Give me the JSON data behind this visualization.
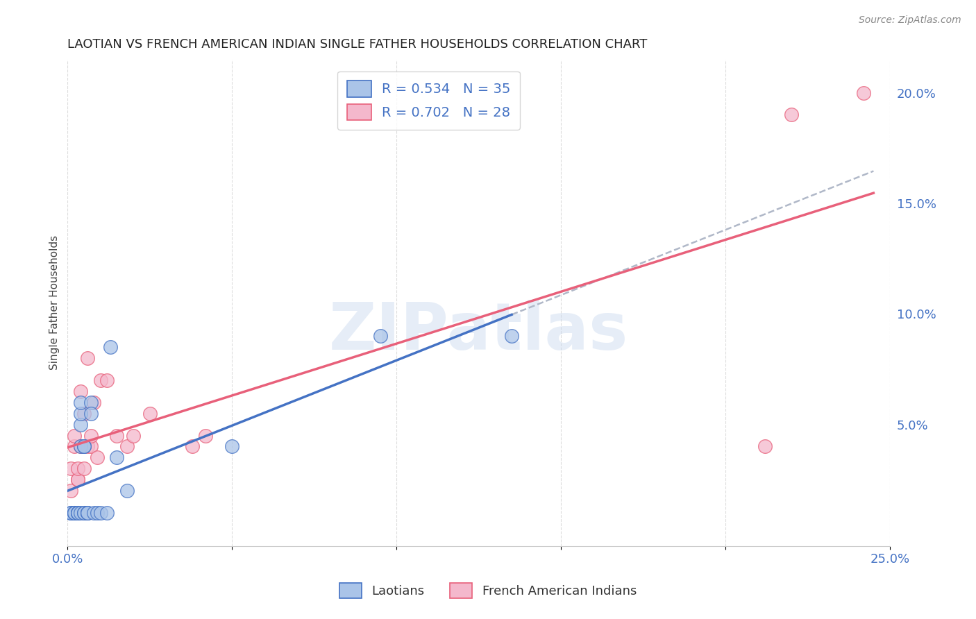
{
  "title": "LAOTIAN VS FRENCH AMERICAN INDIAN SINGLE FATHER HOUSEHOLDS CORRELATION CHART",
  "source": "Source: ZipAtlas.com",
  "ylabel": "Single Father Households",
  "xlim": [
    0.0,
    0.25
  ],
  "ylim": [
    -0.005,
    0.215
  ],
  "laotian_color": "#aac4e8",
  "french_color": "#f4b8cc",
  "laotian_line_color": "#4472c4",
  "french_line_color": "#e8607a",
  "dashed_line_color": "#b0b8c8",
  "legend_label_laotians": "Laotians",
  "legend_label_french": "French American Indians",
  "watermark": "ZIPatlas",
  "laotian_x": [
    0.001,
    0.001,
    0.001,
    0.002,
    0.002,
    0.002,
    0.002,
    0.003,
    0.003,
    0.003,
    0.003,
    0.004,
    0.004,
    0.004,
    0.004,
    0.004,
    0.005,
    0.005,
    0.005,
    0.005,
    0.006,
    0.006,
    0.006,
    0.007,
    0.007,
    0.008,
    0.009,
    0.01,
    0.012,
    0.013,
    0.015,
    0.018,
    0.05,
    0.095,
    0.135
  ],
  "laotian_y": [
    0.01,
    0.01,
    0.01,
    0.01,
    0.01,
    0.01,
    0.01,
    0.01,
    0.01,
    0.01,
    0.01,
    0.04,
    0.05,
    0.055,
    0.06,
    0.01,
    0.04,
    0.04,
    0.01,
    0.01,
    0.01,
    0.01,
    0.01,
    0.06,
    0.055,
    0.01,
    0.01,
    0.01,
    0.01,
    0.085,
    0.035,
    0.02,
    0.04,
    0.09,
    0.09
  ],
  "french_x": [
    0.001,
    0.001,
    0.002,
    0.002,
    0.003,
    0.003,
    0.003,
    0.004,
    0.004,
    0.005,
    0.005,
    0.006,
    0.006,
    0.007,
    0.007,
    0.008,
    0.009,
    0.01,
    0.012,
    0.015,
    0.018,
    0.02,
    0.025,
    0.038,
    0.042,
    0.212,
    0.22,
    0.242
  ],
  "french_y": [
    0.02,
    0.03,
    0.04,
    0.045,
    0.025,
    0.025,
    0.03,
    0.04,
    0.065,
    0.03,
    0.055,
    0.04,
    0.08,
    0.04,
    0.045,
    0.06,
    0.035,
    0.07,
    0.07,
    0.045,
    0.04,
    0.045,
    0.055,
    0.04,
    0.045,
    0.04,
    0.19,
    0.2
  ],
  "background_color": "#ffffff",
  "grid_color": "#dddddd"
}
